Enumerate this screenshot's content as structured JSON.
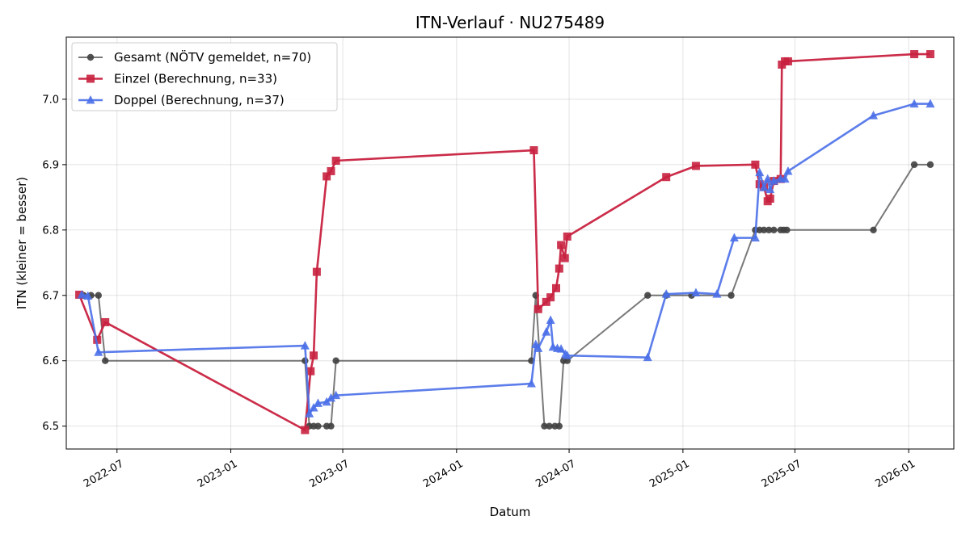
{
  "chart_data": {
    "type": "line",
    "title": "ITN-Verlauf · NU275489",
    "xlabel": "Datum",
    "ylabel": "ITN  (kleiner = besser)",
    "x_type": "date",
    "xlim": [
      "2022-04-10",
      "2026-03-15"
    ],
    "ylim": [
      6.465,
      7.095
    ],
    "x_ticks": [
      "2022-07-01",
      "2023-01-01",
      "2023-07-01",
      "2024-01-01",
      "2024-07-01",
      "2025-01-01",
      "2025-07-01",
      "2026-01-01"
    ],
    "x_tick_labels": [
      "2022-07",
      "2023-01",
      "2023-07",
      "2024-01",
      "2024-07",
      "2025-01",
      "2025-07",
      "2026-01"
    ],
    "y_ticks": [
      6.5,
      6.6,
      6.7,
      6.8,
      6.9,
      7.0
    ],
    "y_tick_labels": [
      "6.5",
      "6.6",
      "6.7",
      "6.8",
      "6.9",
      "7.0"
    ],
    "grid": true,
    "legend_position": "top-left",
    "series": [
      {
        "name": "Gesamt (NÖTV gemeldet, n=70)",
        "color": "#404040",
        "marker": "circle",
        "points": [
          [
            "2022-05-08",
            6.7
          ],
          [
            "2022-05-20",
            6.7
          ],
          [
            "2022-06-01",
            6.7
          ],
          [
            "2022-06-12",
            6.6
          ],
          [
            "2023-05-01",
            6.6
          ],
          [
            "2023-05-08",
            6.5
          ],
          [
            "2023-05-15",
            6.5
          ],
          [
            "2023-05-22",
            6.5
          ],
          [
            "2023-06-05",
            6.5
          ],
          [
            "2023-06-12",
            6.5
          ],
          [
            "2023-06-20",
            6.6
          ],
          [
            "2024-05-01",
            6.6
          ],
          [
            "2024-05-08",
            6.7
          ],
          [
            "2024-05-22",
            6.5
          ],
          [
            "2024-05-30",
            6.5
          ],
          [
            "2024-06-08",
            6.5
          ],
          [
            "2024-06-15",
            6.5
          ],
          [
            "2024-06-22",
            6.6
          ],
          [
            "2024-06-28",
            6.6
          ],
          [
            "2024-11-05",
            6.7
          ],
          [
            "2024-12-05",
            6.7
          ],
          [
            "2025-01-15",
            6.7
          ],
          [
            "2025-03-20",
            6.7
          ],
          [
            "2025-04-28",
            6.8
          ],
          [
            "2025-05-05",
            6.8
          ],
          [
            "2025-05-12",
            6.8
          ],
          [
            "2025-05-20",
            6.8
          ],
          [
            "2025-05-28",
            6.8
          ],
          [
            "2025-06-08",
            6.8
          ],
          [
            "2025-06-13",
            6.8
          ],
          [
            "2025-06-18",
            6.8
          ],
          [
            "2025-11-05",
            6.8
          ],
          [
            "2026-01-10",
            6.9
          ],
          [
            "2026-02-05",
            6.9
          ]
        ]
      },
      {
        "name": "Einzel (Berechnung, n=33)",
        "color": "#c8213f",
        "marker": "square",
        "points": [
          [
            "2022-05-01",
            6.701
          ],
          [
            "2022-05-30",
            6.632
          ],
          [
            "2022-06-12",
            6.659
          ],
          [
            "2023-05-01",
            6.494
          ],
          [
            "2023-05-10",
            6.584
          ],
          [
            "2023-05-15",
            6.608
          ],
          [
            "2023-05-20",
            6.736
          ],
          [
            "2023-06-05",
            6.882
          ],
          [
            "2023-06-12",
            6.89
          ],
          [
            "2023-06-20",
            6.906
          ],
          [
            "2024-05-05",
            6.922
          ],
          [
            "2024-05-12",
            6.679
          ],
          [
            "2024-05-25",
            6.69
          ],
          [
            "2024-06-01",
            6.697
          ],
          [
            "2024-06-10",
            6.711
          ],
          [
            "2024-06-15",
            6.741
          ],
          [
            "2024-06-18",
            6.777
          ],
          [
            "2024-06-24",
            6.757
          ],
          [
            "2024-06-28",
            6.79
          ],
          [
            "2024-12-05",
            6.881
          ],
          [
            "2025-01-22",
            6.898
          ],
          [
            "2025-04-28",
            6.9
          ],
          [
            "2025-05-05",
            6.87
          ],
          [
            "2025-05-12",
            6.866
          ],
          [
            "2025-05-18",
            6.844
          ],
          [
            "2025-05-22",
            6.848
          ],
          [
            "2025-05-28",
            6.875
          ],
          [
            "2025-06-08",
            6.878
          ],
          [
            "2025-06-10",
            7.053
          ],
          [
            "2025-06-15",
            7.058
          ],
          [
            "2025-06-20",
            7.058
          ],
          [
            "2026-01-10",
            7.069
          ],
          [
            "2026-02-05",
            7.069
          ]
        ]
      },
      {
        "name": "Doppel (Berechnung, n=37)",
        "color": "#4a6fe8",
        "marker": "triangle",
        "points": [
          [
            "2022-05-05",
            6.701
          ],
          [
            "2022-05-15",
            6.699
          ],
          [
            "2022-06-01",
            6.613
          ],
          [
            "2023-05-01",
            6.623
          ],
          [
            "2023-05-08",
            6.519
          ],
          [
            "2023-05-15",
            6.528
          ],
          [
            "2023-05-22",
            6.535
          ],
          [
            "2023-06-05",
            6.537
          ],
          [
            "2023-06-12",
            6.543
          ],
          [
            "2023-06-20",
            6.547
          ],
          [
            "2024-05-01",
            6.565
          ],
          [
            "2024-05-08",
            6.625
          ],
          [
            "2024-05-12",
            6.619
          ],
          [
            "2024-05-25",
            6.644
          ],
          [
            "2024-06-01",
            6.662
          ],
          [
            "2024-06-05",
            6.621
          ],
          [
            "2024-06-12",
            6.619
          ],
          [
            "2024-06-18",
            6.618
          ],
          [
            "2024-06-25",
            6.61
          ],
          [
            "2024-06-28",
            6.608
          ],
          [
            "2024-11-05",
            6.605
          ],
          [
            "2024-12-05",
            6.702
          ],
          [
            "2025-01-22",
            6.704
          ],
          [
            "2025-02-25",
            6.702
          ],
          [
            "2025-03-25",
            6.788
          ],
          [
            "2025-04-28",
            6.788
          ],
          [
            "2025-05-05",
            6.888
          ],
          [
            "2025-05-12",
            6.865
          ],
          [
            "2025-05-18",
            6.878
          ],
          [
            "2025-05-22",
            6.862
          ],
          [
            "2025-05-28",
            6.875
          ],
          [
            "2025-06-08",
            6.878
          ],
          [
            "2025-06-15",
            6.878
          ],
          [
            "2025-06-20",
            6.89
          ],
          [
            "2025-11-05",
            6.975
          ],
          [
            "2026-01-10",
            6.993
          ],
          [
            "2026-02-05",
            6.993
          ]
        ]
      }
    ]
  }
}
